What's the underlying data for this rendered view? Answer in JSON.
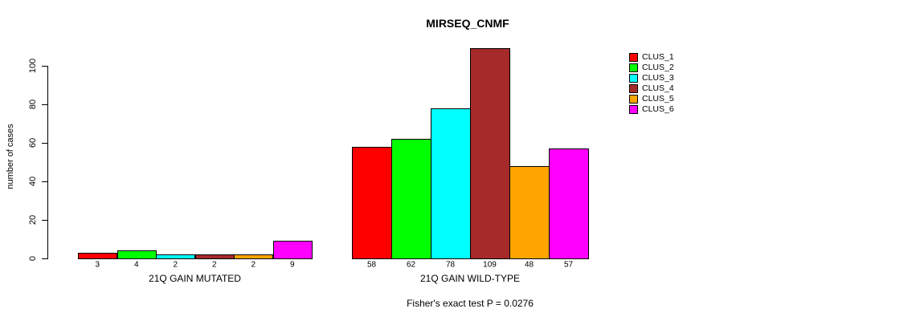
{
  "chart_data": {
    "type": "bar",
    "title": "MIRSEQ_CNMF",
    "ylabel": "number of cases",
    "xlabel": "",
    "ylim": [
      0,
      110
    ],
    "yticks": [
      0,
      20,
      40,
      60,
      80,
      100
    ],
    "grid": false,
    "legend_position": "right-outside-of-bars",
    "bar_border_color": "#000000",
    "background_color": "#ffffff",
    "categories": [
      "21Q GAIN MUTATED",
      "21Q GAIN WILD-TYPE"
    ],
    "series": [
      {
        "name": "CLUS_1",
        "color": "#ff0000",
        "values": [
          3,
          58
        ]
      },
      {
        "name": "CLUS_2",
        "color": "#00ff00",
        "values": [
          4,
          62
        ]
      },
      {
        "name": "CLUS_3",
        "color": "#00ffff",
        "values": [
          2,
          78
        ]
      },
      {
        "name": "CLUS_4",
        "color": "#a52a2a",
        "values": [
          2,
          109
        ]
      },
      {
        "name": "CLUS_5",
        "color": "#ffa500",
        "values": [
          2,
          48
        ]
      },
      {
        "name": "CLUS_6",
        "color": "#ff00ff",
        "values": [
          9,
          57
        ]
      }
    ],
    "bar_value_labels_shown": true,
    "footnote": "Fisher's exact test P = 0.0276"
  }
}
